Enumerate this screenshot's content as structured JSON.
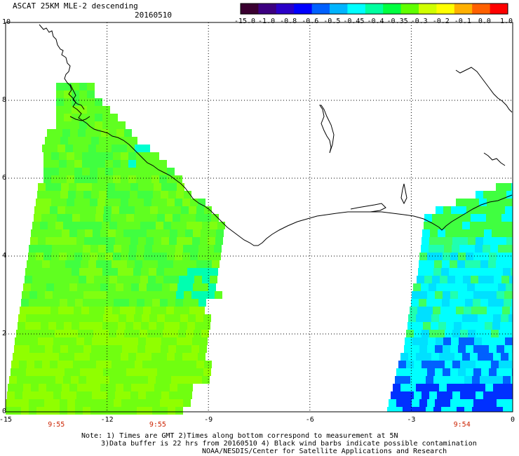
{
  "title": "ASCAT 25KM MLE-2 descending",
  "date": "20160510",
  "colorbar": {
    "labels": [
      "-15.0",
      "-1.0",
      "-0.8",
      "-0.6",
      "-0.5",
      "-0.45",
      "-0.4",
      "-0.35",
      "-0.3",
      "-0.2",
      "-0.1",
      "0.0",
      "1.0"
    ],
    "colors": [
      "#3a0030",
      "#3c0080",
      "#2a00c8",
      "#0000ff",
      "#0060ff",
      "#00b4ff",
      "#00ffff",
      "#00ffa0",
      "#00ff40",
      "#60ff00",
      "#d0ff00",
      "#ffff00",
      "#ffb000",
      "#ff6000",
      "#ff0000"
    ]
  },
  "axes": {
    "y_ticks": [
      "10",
      "8",
      "6",
      "4",
      "2",
      "0"
    ],
    "x_ticks": [
      "-15",
      "-12",
      "-9",
      "-6",
      "-3",
      "0"
    ]
  },
  "times": [
    {
      "label": "9:55",
      "lon": -13.5
    },
    {
      "label": "9:55",
      "lon": -10.5
    },
    {
      "label": "9:54",
      "lon": -1.5
    }
  ],
  "notes": [
    "Note: 1) Times are GMT 2)Times along bottom correspond to measurement at 5N",
    "3)Data buffer is 22 hrs from 20160510 4) Black wind barbs indicate possible contamination",
    "NOAA/NESDIS/Center for Satellite Applications and Research"
  ]
}
